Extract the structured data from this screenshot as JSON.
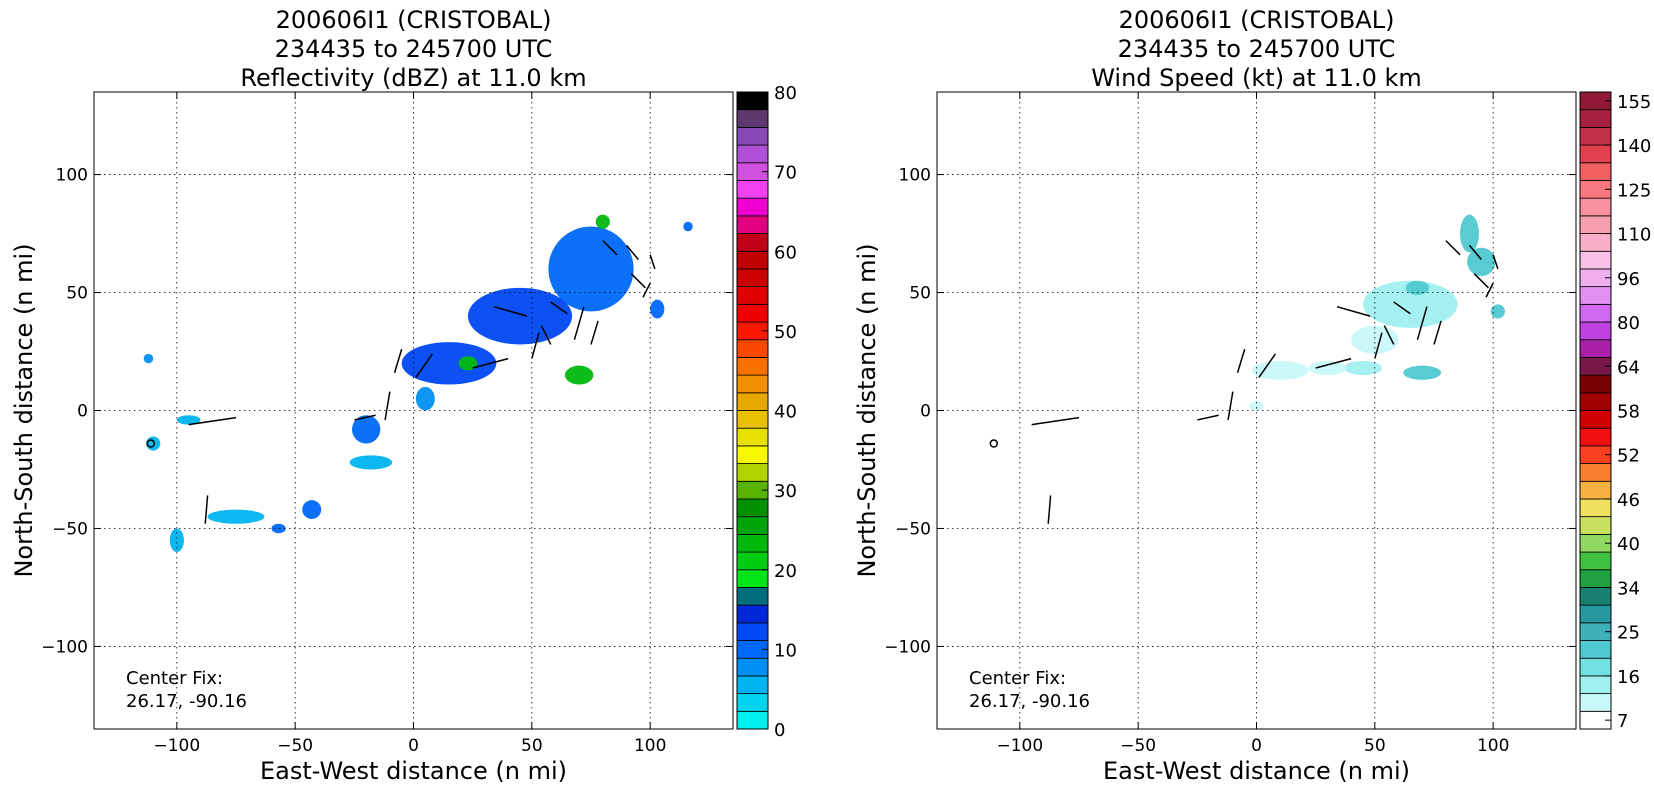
{
  "chart_data": [
    {
      "type": "heatmap",
      "title": [
        "200606I1 (CRISTOBAL)",
        "234435 to 245700 UTC",
        "Reflectivity (dBZ) at 11.0 km"
      ],
      "xlabel": "East-West distance (n mi)",
      "ylabel": "North-South distance (n mi)",
      "xlim": [
        -135,
        135
      ],
      "ylim": [
        -135,
        135
      ],
      "xticks": [
        -100,
        -50,
        0,
        50,
        100
      ],
      "yticks": [
        -100,
        -50,
        0,
        50,
        100
      ],
      "xtick_labels": [
        "−100",
        "−50",
        "0",
        "50",
        "100"
      ],
      "ytick_labels": [
        "−100",
        "−50",
        "0",
        "50",
        "100"
      ],
      "grid": true,
      "annotation": [
        "Center Fix:",
        "26.17, -90.16"
      ],
      "colorbar": {
        "label_values": [
          "0",
          "10",
          "20",
          "30",
          "40",
          "50",
          "60",
          "70",
          "80"
        ],
        "colors": [
          "#00f0f0",
          "#00d4ee",
          "#00b4f0",
          "#0090f4",
          "#0068f8",
          "#0048f4",
          "#0028d8",
          "#006e7c",
          "#00e418",
          "#00cc12",
          "#00b80c",
          "#00a408",
          "#009000",
          "#58b400",
          "#b0d400",
          "#f8f800",
          "#e8e000",
          "#e8c000",
          "#e8a800",
          "#f09000",
          "#f87000",
          "#f84800",
          "#f81800",
          "#f00000",
          "#e00000",
          "#cc0000",
          "#c00000",
          "#c00018",
          "#e00080",
          "#f000d0",
          "#f040f0",
          "#d050e0",
          "#b050d8",
          "#8848b8",
          "#603870",
          "#000000"
        ]
      },
      "echo_regions": [
        {
          "x": 75,
          "y": 60,
          "rx": 18,
          "ry": 18,
          "value_dbz": 10
        },
        {
          "x": 45,
          "y": 40,
          "rx": 22,
          "ry": 12,
          "value_dbz": 12
        },
        {
          "x": 15,
          "y": 20,
          "rx": 20,
          "ry": 9,
          "value_dbz": 12
        },
        {
          "x": 23,
          "y": 20,
          "rx": 4,
          "ry": 3,
          "value_dbz": 22
        },
        {
          "x": 70,
          "y": 15,
          "rx": 6,
          "ry": 4,
          "value_dbz": 22
        },
        {
          "x": 80,
          "y": 80,
          "rx": 3,
          "ry": 3,
          "value_dbz": 22
        },
        {
          "x": -20,
          "y": -8,
          "rx": 6,
          "ry": 6,
          "value_dbz": 10
        },
        {
          "x": -18,
          "y": -22,
          "rx": 9,
          "ry": 3,
          "value_dbz": 4
        },
        {
          "x": -75,
          "y": -45,
          "rx": 12,
          "ry": 3,
          "value_dbz": 4
        },
        {
          "x": -43,
          "y": -42,
          "rx": 4,
          "ry": 4,
          "value_dbz": 10
        },
        {
          "x": -100,
          "y": -55,
          "rx": 3,
          "ry": 5,
          "value_dbz": 4
        },
        {
          "x": -110,
          "y": -14,
          "rx": 3,
          "ry": 3,
          "value_dbz": 4
        },
        {
          "x": -95,
          "y": -4,
          "rx": 5,
          "ry": 2,
          "value_dbz": 4
        },
        {
          "x": -112,
          "y": 22,
          "rx": 2,
          "ry": 2,
          "value_dbz": 6
        },
        {
          "x": -57,
          "y": -50,
          "rx": 3,
          "ry": 2,
          "value_dbz": 10
        },
        {
          "x": 116,
          "y": 78,
          "rx": 2,
          "ry": 2,
          "value_dbz": 10
        },
        {
          "x": 103,
          "y": 43,
          "rx": 3,
          "ry": 4,
          "value_dbz": 10
        },
        {
          "x": 5,
          "y": 5,
          "rx": 4,
          "ry": 5,
          "value_dbz": 6
        }
      ]
    },
    {
      "type": "heatmap",
      "title": [
        "200606I1 (CRISTOBAL)",
        "234435 to 245700 UTC",
        "Wind Speed (kt) at 11.0 km"
      ],
      "xlabel": "East-West distance (n mi)",
      "ylabel": "North-South distance (n mi)",
      "xlim": [
        -135,
        135
      ],
      "ylim": [
        -135,
        135
      ],
      "xticks": [
        -100,
        -50,
        0,
        50,
        100
      ],
      "yticks": [
        -100,
        -50,
        0,
        50,
        100
      ],
      "xtick_labels": [
        "−100",
        "−50",
        "0",
        "50",
        "100"
      ],
      "ytick_labels": [
        "−100",
        "−50",
        "0",
        "50",
        "100"
      ],
      "grid": true,
      "annotation": [
        "Center Fix:",
        "26.17, -90.16"
      ],
      "colorbar": {
        "label_values": [
          "7",
          "16",
          "25",
          "34",
          "40",
          "46",
          "52",
          "58",
          "64",
          "80",
          "96",
          "110",
          "125",
          "140",
          "155"
        ],
        "colors": [
          "#ffffff",
          "#c8f8f8",
          "#a0f0f0",
          "#70e0e0",
          "#50c8d0",
          "#40b0b8",
          "#2898a0",
          "#188070",
          "#20a040",
          "#40c040",
          "#90d860",
          "#c8e060",
          "#f0e060",
          "#f8b040",
          "#f88030",
          "#f84020",
          "#f01010",
          "#d00000",
          "#a00000",
          "#780000",
          "#781848",
          "#a820a8",
          "#c040e0",
          "#d068f0",
          "#e090f0",
          "#f0b0f0",
          "#f8c0e8",
          "#f8b0c8",
          "#f8a0b0",
          "#f890a0",
          "#f87880",
          "#f06060",
          "#e04050",
          "#c03048",
          "#a82040",
          "#901838"
        ]
      },
      "echo_regions": [
        {
          "x": 90,
          "y": 75,
          "rx": 4,
          "ry": 8,
          "value_kt": 25
        },
        {
          "x": 95,
          "y": 63,
          "rx": 6,
          "ry": 6,
          "value_kt": 25
        },
        {
          "x": 65,
          "y": 45,
          "rx": 20,
          "ry": 10,
          "value_kt": 16
        },
        {
          "x": 50,
          "y": 30,
          "rx": 10,
          "ry": 6,
          "value_kt": 12
        },
        {
          "x": 70,
          "y": 16,
          "rx": 8,
          "ry": 3,
          "value_kt": 22
        },
        {
          "x": 45,
          "y": 18,
          "rx": 8,
          "ry": 3,
          "value_kt": 14
        },
        {
          "x": 10,
          "y": 17,
          "rx": 12,
          "ry": 4,
          "value_kt": 10
        },
        {
          "x": 30,
          "y": 18,
          "rx": 8,
          "ry": 3,
          "value_kt": 10
        },
        {
          "x": 102,
          "y": 42,
          "rx": 3,
          "ry": 3,
          "value_kt": 25
        },
        {
          "x": 68,
          "y": 52,
          "rx": 5,
          "ry": 3,
          "value_kt": 25
        },
        {
          "x": 0,
          "y": 2,
          "rx": 3,
          "ry": 2,
          "value_kt": 10
        }
      ]
    }
  ]
}
